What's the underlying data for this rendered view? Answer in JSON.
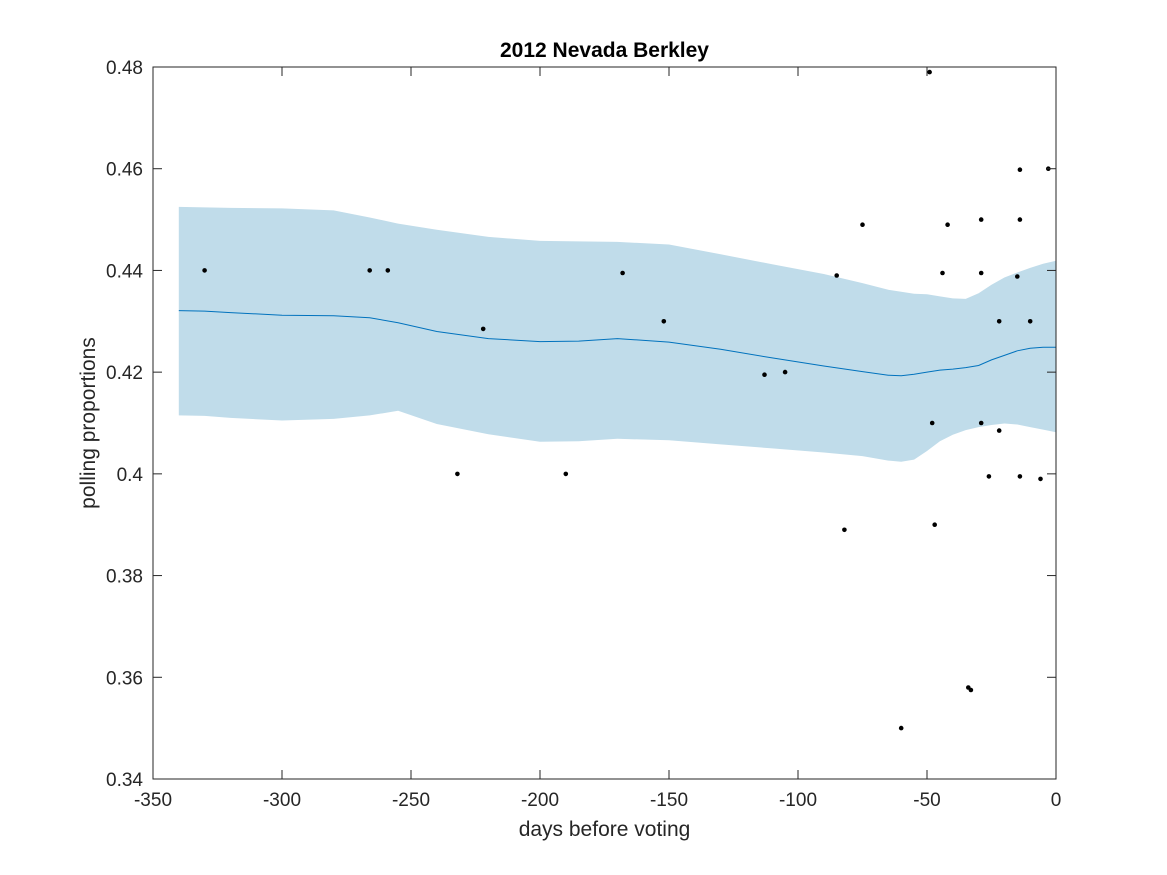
{
  "chart_data": {
    "type": "scatter",
    "title": "2012 Nevada Berkley",
    "xlabel": "days before voting",
    "ylabel": "polling proportions",
    "xlim": [
      -350,
      0
    ],
    "ylim": [
      0.34,
      0.48
    ],
    "xticks": [
      -350,
      -300,
      -250,
      -200,
      -150,
      -100,
      -50,
      0
    ],
    "xtick_labels": [
      "-350",
      "-300",
      "-250",
      "-200",
      "-150",
      "-100",
      "-50",
      "0"
    ],
    "yticks": [
      0.34,
      0.36,
      0.38,
      0.4,
      0.42,
      0.44,
      0.46,
      0.48
    ],
    "ytick_labels": [
      "0.34",
      "0.36",
      "0.38",
      "0.4",
      "0.42",
      "0.44",
      "0.46",
      "0.48"
    ],
    "grid": false,
    "legend": "none",
    "colors": {
      "band": "#c0dcea",
      "line": "#0072bd",
      "points": "#000000",
      "axes": "#262626"
    },
    "series": [
      {
        "kind": "points",
        "x": [
          -330,
          -266,
          -259,
          -232,
          -222,
          -190,
          -168,
          -152,
          -113,
          -105,
          -85,
          -82,
          -75,
          -60,
          -49,
          -48,
          -47,
          -44,
          -42,
          -34,
          -33,
          -29,
          -29,
          -29,
          -26,
          -22,
          -22,
          -15,
          -14,
          -14,
          -14,
          -10,
          -6,
          -3
        ],
        "y": [
          0.44,
          0.44,
          0.44,
          0.4,
          0.4285,
          0.4,
          0.4395,
          0.43,
          0.4195,
          0.42,
          0.439,
          0.389,
          0.449,
          0.35,
          0.479,
          0.41,
          0.39,
          0.4395,
          0.449,
          0.358,
          0.3575,
          0.45,
          0.4395,
          0.41,
          0.3995,
          0.43,
          0.4085,
          0.4388,
          0.4598,
          0.45,
          0.3995,
          0.43,
          0.399,
          0.46
        ]
      },
      {
        "kind": "mean",
        "x": [
          -340,
          -330,
          -320,
          -300,
          -280,
          -266,
          -255,
          -240,
          -220,
          -200,
          -185,
          -170,
          -150,
          -130,
          -110,
          -90,
          -75,
          -65,
          -60,
          -55,
          -50,
          -45,
          -40,
          -35,
          -30,
          -25,
          -20,
          -15,
          -10,
          -5,
          0
        ],
        "y": [
          0.4321,
          0.432,
          0.4317,
          0.4312,
          0.4311,
          0.4307,
          0.4297,
          0.428,
          0.4266,
          0.426,
          0.4261,
          0.4266,
          0.4259,
          0.4245,
          0.4228,
          0.4212,
          0.4201,
          0.4194,
          0.4193,
          0.4196,
          0.42,
          0.4204,
          0.4206,
          0.4209,
          0.4213,
          0.4224,
          0.4233,
          0.4242,
          0.4247,
          0.4249,
          0.4249
        ]
      },
      {
        "kind": "band",
        "x": [
          -340,
          -330,
          -320,
          -300,
          -280,
          -266,
          -255,
          -240,
          -220,
          -200,
          -185,
          -170,
          -150,
          -130,
          -110,
          -90,
          -75,
          -65,
          -60,
          -55,
          -50,
          -45,
          -40,
          -35,
          -30,
          -25,
          -20,
          -15,
          -10,
          -5,
          0
        ],
        "upper": [
          0.4525,
          0.4524,
          0.4523,
          0.4522,
          0.4518,
          0.4504,
          0.4492,
          0.448,
          0.4466,
          0.4458,
          0.4457,
          0.4456,
          0.4451,
          0.4432,
          0.4412,
          0.4393,
          0.4375,
          0.4362,
          0.4358,
          0.4354,
          0.4353,
          0.4349,
          0.4345,
          0.4344,
          0.4355,
          0.4372,
          0.4386,
          0.4396,
          0.4405,
          0.4413,
          0.4419
        ],
        "lower": [
          0.4115,
          0.4114,
          0.411,
          0.4105,
          0.4108,
          0.4115,
          0.4124,
          0.4098,
          0.4078,
          0.4063,
          0.4064,
          0.4069,
          0.4066,
          0.4058,
          0.405,
          0.4042,
          0.4035,
          0.4026,
          0.4024,
          0.4028,
          0.4045,
          0.4064,
          0.4077,
          0.4086,
          0.4092,
          0.4096,
          0.4099,
          0.4097,
          0.4092,
          0.4087,
          0.4082
        ]
      }
    ]
  }
}
